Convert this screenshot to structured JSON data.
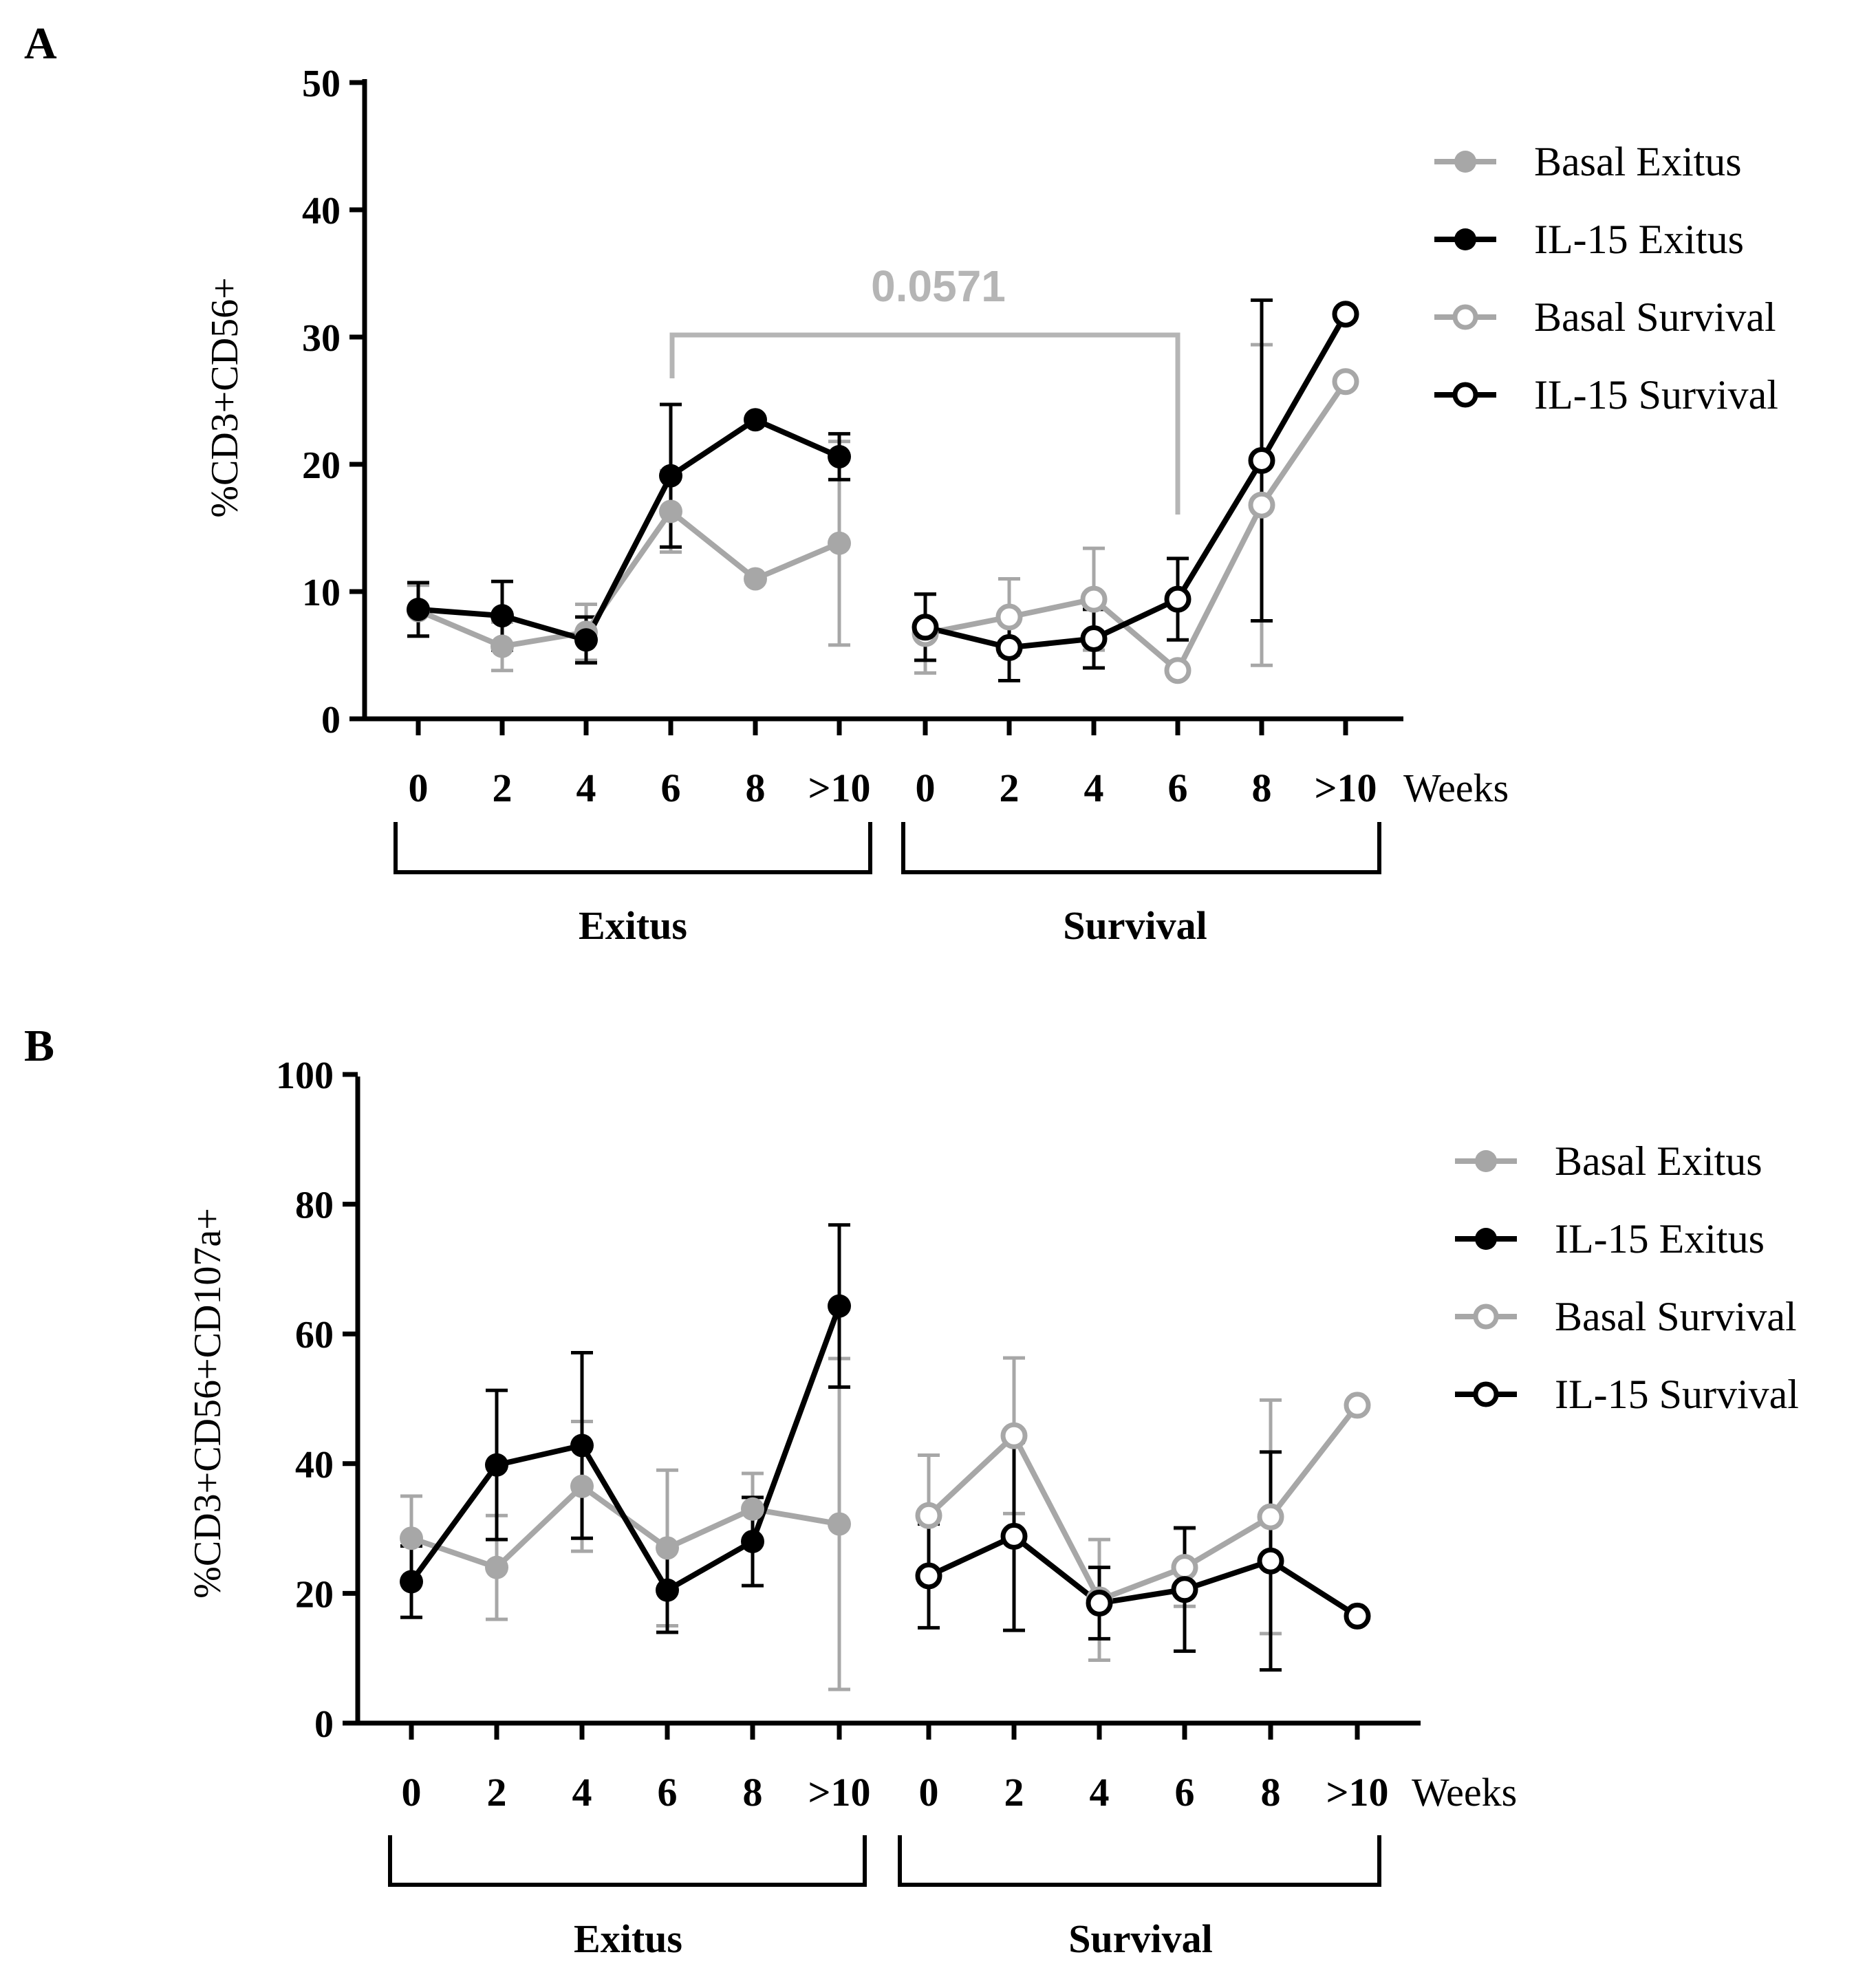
{
  "colors": {
    "gray": "#a7a7a7",
    "black": "#000000",
    "gray_bracket": "#b5b5b5"
  },
  "panels": [
    {
      "label": "A",
      "ylabel": "%CD3+CD56+",
      "ylim": [
        0,
        50
      ],
      "yticks": [
        "0",
        "10",
        "20",
        "30",
        "40",
        "50"
      ],
      "categories": [
        "0",
        "2",
        "4",
        "6",
        "8",
        ">10",
        "0",
        "2",
        "4",
        "6",
        "8",
        ">10"
      ],
      "xunit": "Weeks",
      "groups": [
        "Exitus",
        "Survival"
      ],
      "annotation": {
        "text": "0.0571",
        "from_index": 3,
        "to_index": 9
      }
    },
    {
      "label": "B",
      "ylabel": "%CD3+CD56+CD107a+",
      "ylim": [
        0,
        100
      ],
      "yticks": [
        "0",
        "20",
        "40",
        "60",
        "80",
        "100"
      ],
      "categories": [
        "0",
        "2",
        "4",
        "6",
        "8",
        ">10",
        "0",
        "2",
        "4",
        "6",
        "8",
        ">10"
      ],
      "xunit": "Weeks",
      "groups": [
        "Exitus",
        "Survival"
      ]
    }
  ],
  "legend": {
    "entries": [
      "Basal Exitus",
      "IL-15 Exitus",
      "Basal Survival",
      "IL-15 Survival"
    ]
  },
  "chart_data": [
    {
      "type": "line",
      "title": "A",
      "xlabel": "Weeks",
      "ylabel": "%CD3+CD56+",
      "ylim": [
        0,
        50
      ],
      "categories": [
        "0",
        "2",
        "4",
        "6",
        "8",
        ">10"
      ],
      "series": [
        {
          "name": "Basal Exitus",
          "group": "Exitus",
          "color": "#a7a7a7",
          "filled": true,
          "values": [
            8.5,
            5.7,
            6.8,
            16.3,
            11.0,
            13.8
          ],
          "errors": [
            2.0,
            1.9,
            2.2,
            3.2,
            0,
            8.0
          ]
        },
        {
          "name": "IL-15 Exitus",
          "group": "Exitus",
          "color": "#000000",
          "filled": true,
          "values": [
            8.6,
            8.1,
            6.2,
            19.1,
            23.5,
            20.6
          ],
          "errors": [
            2.1,
            2.7,
            1.8,
            5.6,
            0,
            1.8
          ]
        },
        {
          "name": "Basal Survival",
          "group": "Survival",
          "color": "#a7a7a7",
          "filled": false,
          "values": [
            6.7,
            8.0,
            9.4,
            3.8,
            16.8,
            26.5
          ],
          "errors": [
            3.1,
            3.0,
            4.0,
            0,
            12.6,
            0
          ]
        },
        {
          "name": "IL-15 Survival",
          "group": "Survival",
          "color": "#000000",
          "filled": false,
          "values": [
            7.2,
            5.6,
            6.3,
            9.4,
            20.3,
            31.8
          ],
          "errors": [
            2.6,
            2.6,
            2.3,
            3.2,
            12.6,
            0
          ]
        }
      ],
      "annotations": [
        {
          "text": "0.0571",
          "between": [
            "Exitus 6",
            "Survival 6"
          ]
        }
      ]
    },
    {
      "type": "line",
      "title": "B",
      "xlabel": "Weeks",
      "ylabel": "%CD3+CD56+CD107a+",
      "ylim": [
        0,
        100
      ],
      "categories": [
        "0",
        "2",
        "4",
        "6",
        "8",
        ">10"
      ],
      "series": [
        {
          "name": "Basal Exitus",
          "group": "Exitus",
          "color": "#a7a7a7",
          "filled": true,
          "values": [
            28.5,
            24.0,
            36.5,
            27.0,
            33.0,
            30.7
          ],
          "errors": [
            6.5,
            8.0,
            10.0,
            12.0,
            5.5,
            25.5
          ]
        },
        {
          "name": "IL-15 Exitus",
          "group": "Exitus",
          "color": "#000000",
          "filled": true,
          "values": [
            21.8,
            39.8,
            42.8,
            20.5,
            28.0,
            64.3
          ],
          "errors": [
            5.5,
            11.5,
            14.3,
            6.5,
            6.8,
            12.5
          ]
        },
        {
          "name": "Basal Survival",
          "group": "Survival",
          "color": "#a7a7a7",
          "filled": false,
          "values": [
            32.0,
            44.3,
            19.0,
            24.0,
            31.8,
            49.0
          ],
          "errors": [
            9.3,
            12.0,
            9.3,
            6.0,
            18.0,
            0
          ]
        },
        {
          "name": "IL-15 Survival",
          "group": "Survival",
          "color": "#000000",
          "filled": false,
          "values": [
            22.7,
            28.8,
            18.5,
            20.6,
            25.0,
            16.5
          ],
          "errors": [
            8.0,
            14.5,
            5.5,
            9.5,
            16.8,
            0
          ]
        }
      ]
    }
  ]
}
